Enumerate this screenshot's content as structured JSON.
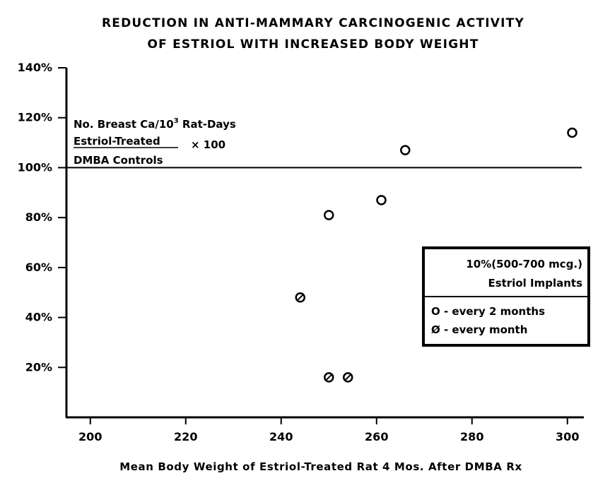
{
  "chart_data": {
    "type": "scatter",
    "title": "REDUCTION IN ANTI-MAMMARY CARCINOGENIC ACTIVITY",
    "subtitle": "OF ESTRIOL WITH INCREASED BODY WEIGHT",
    "xlabel": "Mean Body Weight of Estriol-Treated Rat 4 Mos. After DMBA Rx",
    "xlim": [
      195,
      303
    ],
    "ylim": [
      0,
      140
    ],
    "x_ticks": [
      "200",
      "220",
      "240",
      "260",
      "280",
      "300"
    ],
    "x_tick_values": [
      200,
      220,
      240,
      260,
      280,
      300
    ],
    "y_ticks": [
      "140%",
      "120%",
      "100%",
      "80%",
      "60%",
      "40%",
      "20%"
    ],
    "y_tick_values": [
      140,
      120,
      100,
      80,
      60,
      40,
      20
    ],
    "reference_line": 100,
    "formula": {
      "line1_prefix": "No. Breast Ca/10",
      "line1_sup": "3",
      "line1_suffix": " Rat-Days",
      "numerator": "Estriol-Treated",
      "multiplier": "× 100",
      "denominator": "DMBA Controls"
    },
    "legend": {
      "heading1": "10%(500-700 mcg.)",
      "heading2": "Estriol Implants",
      "entries": [
        {
          "marker": "open-circle",
          "label": "O - every 2 months"
        },
        {
          "marker": "slashed-circle",
          "label": "Ø - every month"
        }
      ]
    },
    "series": [
      {
        "name": "every 2 months",
        "marker": "open-circle",
        "points": [
          {
            "x": 250,
            "y": 81
          },
          {
            "x": 261,
            "y": 87
          },
          {
            "x": 266,
            "y": 107
          },
          {
            "x": 301,
            "y": 114
          }
        ]
      },
      {
        "name": "every month",
        "marker": "slashed-circle",
        "points": [
          {
            "x": 244,
            "y": 48
          },
          {
            "x": 250,
            "y": 16
          },
          {
            "x": 254,
            "y": 16
          }
        ]
      }
    ]
  }
}
